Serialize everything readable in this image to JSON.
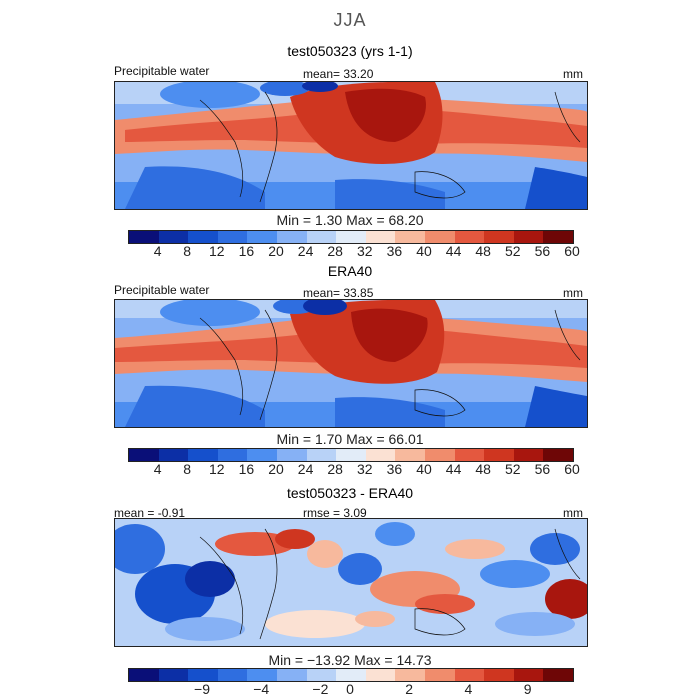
{
  "figure": {
    "season_title": "JJA"
  },
  "palettes": {
    "precip": [
      "#0a0f78",
      "#0c2fa6",
      "#1550cc",
      "#2f6ee0",
      "#4d8ef0",
      "#86b1f5",
      "#b8d2f7",
      "#e2ecf8",
      "#fbe1d3",
      "#f7b99d",
      "#f08c6c",
      "#e4583f",
      "#cf3620",
      "#a8160e",
      "#6e0606"
    ],
    "diff": [
      "#0a0f78",
      "#0c2fa6",
      "#1550cc",
      "#2f6ee0",
      "#4d8ef0",
      "#86b1f5",
      "#b8d2f7",
      "#e2ecf8",
      "#fbe1d3",
      "#f7b99d",
      "#f08c6c",
      "#e4583f",
      "#cf3620",
      "#a8160e",
      "#6e0606"
    ]
  },
  "panels": [
    {
      "title": "test050323 (yrs 1-1)",
      "left_label": "Precipitable water",
      "center_label": "mean=  33.20",
      "units": "mm",
      "minmax": "Min =    1.30  Max =   68.20",
      "ticks": [
        "4",
        "8",
        "12",
        "16",
        "20",
        "24",
        "28",
        "32",
        "36",
        "40",
        "44",
        "48",
        "52",
        "56",
        "60"
      ]
    },
    {
      "title": "ERA40",
      "left_label": "Precipitable water",
      "center_label": "mean=  33.85",
      "units": "mm",
      "minmax": "Min =    1.70  Max =   66.01",
      "ticks": [
        "4",
        "8",
        "12",
        "16",
        "20",
        "24",
        "28",
        "32",
        "36",
        "40",
        "44",
        "48",
        "52",
        "56",
        "60"
      ]
    },
    {
      "title": "test050323 - ERA40",
      "left_label": "mean =  -0.91",
      "center_label": "rmse =    3.09",
      "units": "mm",
      "minmax": "Min = −13.92  Max =   14.73",
      "ticks": [
        "−9",
        "−4",
        "−2",
        "0",
        "2",
        "4",
        "9"
      ]
    }
  ]
}
